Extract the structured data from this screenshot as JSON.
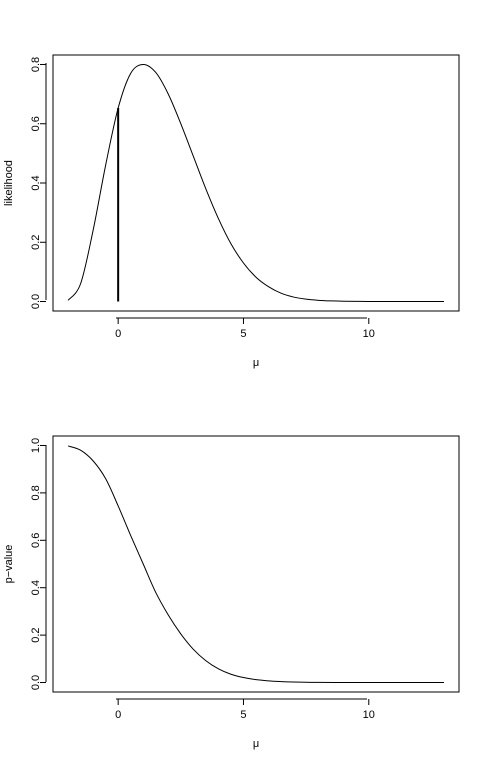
{
  "chart_data": [
    {
      "type": "line",
      "title": "",
      "xlabel": "μ",
      "ylabel": "likelihood",
      "xlim": [
        -2.6,
        13.6
      ],
      "ylim": [
        -0.032,
        0.832
      ],
      "xticks": [
        0,
        5,
        10
      ],
      "xtick_labels": [
        "0",
        "5",
        "10"
      ],
      "yticks": [
        0.0,
        0.2,
        0.4,
        0.6,
        0.8
      ],
      "ytick_labels": [
        "0.0",
        "0.2",
        "0.4",
        "0.6",
        "0.8"
      ],
      "grid": false,
      "series": [
        {
          "x": [
            -2,
            -1.5,
            -1,
            -0.5,
            0,
            0.5,
            1,
            1.5,
            2,
            2.5,
            3,
            3.5,
            4,
            4.5,
            5,
            5.5,
            6,
            6.5,
            7,
            7.5,
            8,
            8.5,
            9,
            10,
            11,
            12,
            13
          ],
          "values": [
            0.004,
            0.06,
            0.24,
            0.46,
            0.653,
            0.77,
            0.8,
            0.773,
            0.7,
            0.6,
            0.49,
            0.38,
            0.28,
            0.195,
            0.13,
            0.082,
            0.05,
            0.028,
            0.015,
            0.008,
            0.004,
            0.002,
            0.001,
            0.0002,
            3e-05,
            0.0,
            0.0
          ]
        }
      ],
      "vertical_segment": {
        "x": 0,
        "y_from": 0,
        "y_to": 0.653
      }
    },
    {
      "type": "line",
      "title": "",
      "xlabel": "μ",
      "ylabel": "p−value",
      "xlim": [
        -2.6,
        13.6
      ],
      "ylim": [
        -0.04,
        1.04
      ],
      "xticks": [
        0,
        5,
        10
      ],
      "xtick_labels": [
        "0",
        "5",
        "10"
      ],
      "yticks": [
        0.0,
        0.2,
        0.4,
        0.6,
        0.8,
        1.0
      ],
      "ytick_labels": [
        "0.0",
        "0.2",
        "0.4",
        "0.6",
        "0.8",
        "1.0"
      ],
      "grid": false,
      "series": [
        {
          "x": [
            -2,
            -1.5,
            -1,
            -0.5,
            0,
            0.5,
            1,
            1.5,
            2,
            2.5,
            3,
            3.5,
            4,
            4.5,
            5,
            5.5,
            6,
            6.5,
            7,
            7.5,
            8,
            9,
            10,
            11,
            12,
            13
          ],
          "values": [
            0.998,
            0.98,
            0.935,
            0.86,
            0.745,
            0.62,
            0.5,
            0.38,
            0.285,
            0.205,
            0.14,
            0.092,
            0.058,
            0.035,
            0.021,
            0.012,
            0.007,
            0.004,
            0.002,
            0.001,
            0.0006,
            0.0002,
            5e-05,
            0.0,
            0.0,
            0.0
          ]
        }
      ]
    }
  ]
}
